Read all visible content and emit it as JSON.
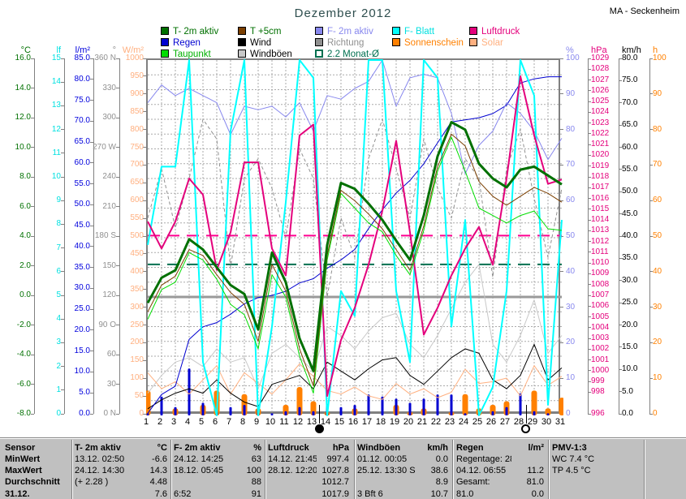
{
  "header": {
    "title": "Dezember 2012",
    "station": "MA - Seckenheim"
  },
  "legend": {
    "rows": [
      [
        {
          "label": "T- 2m aktiv",
          "swatch": "#007000",
          "text": "#007000"
        },
        {
          "label": "T +5cm",
          "swatch": "#7b3f00",
          "text": "#007000"
        },
        {
          "label": "F- 2m aktiv",
          "swatch": "#8888ee",
          "text": "#8888ee"
        },
        {
          "label": "F- Blatt",
          "swatch": "#00ffff",
          "text": "#00e0e0"
        },
        {
          "label": "Luftdruck",
          "swatch": "#e4007c",
          "text": "#e4007c"
        }
      ],
      [
        {
          "label": "Regen",
          "swatch": "#0000d0",
          "text": "#0000d0"
        },
        {
          "label": "Wind",
          "swatch": "#000000",
          "text": "#000000"
        },
        {
          "label": "Richtung",
          "swatch": "#909090",
          "text": "#909090"
        },
        {
          "label": "Sonnenschein",
          "swatch": "#ff8000",
          "text": "#ff8000"
        },
        {
          "label": "Solar",
          "swatch": "#ffb080",
          "text": "#ffb080"
        }
      ],
      [
        {
          "label": "Taupunkt",
          "swatch": "#00dd00",
          "text": "#00b000"
        },
        {
          "label": "Windböen",
          "swatch": "#c8c8c8",
          "text": "#000000"
        },
        {
          "label": "2.2 Monat-Ø",
          "swatch": "#ffffff",
          "text": "#007050",
          "outline": "#007050"
        }
      ]
    ]
  },
  "axes": {
    "left": [
      {
        "key": "degC",
        "unit": "°C",
        "color": "#007000",
        "max": 16,
        "min": -8,
        "step": 2,
        "dec": 1
      },
      {
        "key": "lf",
        "unit": "lf",
        "color": "#00e0e0",
        "max": 15,
        "min": 0,
        "step": 1,
        "dec": 0
      },
      {
        "key": "lm2",
        "unit": "l/m²",
        "color": "#0000dd",
        "max": 85,
        "min": 0,
        "step": 5,
        "dec": 1
      },
      {
        "key": "deg",
        "unit": "°",
        "color": "#909090",
        "max": 360,
        "min": 0,
        "step": 30,
        "dec": 0,
        "map": {
          "360": "360 N",
          "270": "270 W",
          "180": "180 S",
          "90": "90 O",
          "0": "0  N"
        }
      },
      {
        "key": "wm2",
        "unit": "W/m²",
        "color": "#ffb080",
        "max": 1000,
        "min": 0,
        "step": 50,
        "dec": 0
      }
    ],
    "right": [
      {
        "key": "pct",
        "unit": "%",
        "color": "#8888ee",
        "max": 100,
        "min": 0,
        "step": 10,
        "dec": 0
      },
      {
        "key": "hPa",
        "unit": "hPa",
        "color": "#e4007c",
        "max": 1029,
        "min": 996,
        "step": 1,
        "dec": 0,
        "skip": [
          997
        ]
      },
      {
        "key": "kmh",
        "unit": "km/h",
        "color": "#000000",
        "max": 80,
        "min": 0,
        "step": 5,
        "dec": 1
      },
      {
        "key": "h",
        "unit": "h",
        "color": "#ff8000",
        "max": 100,
        "min": 0,
        "step": 10,
        "dec": 0
      }
    ]
  },
  "x_axis": {
    "days": [
      1,
      2,
      3,
      4,
      5,
      6,
      7,
      8,
      9,
      10,
      11,
      12,
      13,
      14,
      15,
      16,
      17,
      18,
      19,
      20,
      21,
      22,
      23,
      24,
      25,
      26,
      27,
      28,
      29,
      30,
      31
    ]
  },
  "moon_markers": {
    "new_moon_day": 13.5,
    "full_moon_day": 28.5
  },
  "chart_data": {
    "type": "line",
    "title": "Dezember 2012",
    "x": [
      1,
      2,
      3,
      4,
      5,
      6,
      7,
      8,
      9,
      10,
      11,
      12,
      13,
      14,
      15,
      16,
      17,
      18,
      19,
      20,
      21,
      22,
      23,
      24,
      25,
      26,
      27,
      28,
      29,
      30,
      31
    ],
    "axes_ranges": {
      "degC": [
        -8,
        16
      ],
      "lf": [
        0,
        15
      ],
      "lm2": [
        0,
        85
      ],
      "deg": [
        0,
        360
      ],
      "wm2": [
        0,
        1000
      ],
      "pct": [
        0,
        100
      ],
      "hPa": [
        996,
        1029
      ],
      "kmh": [
        0,
        80
      ],
      "h": [
        0,
        100
      ]
    },
    "series": [
      {
        "name": "Richtung",
        "axis": "deg",
        "color": "#909090",
        "width": 1,
        "dash": "4 3",
        "values": [
          200,
          250,
          190,
          240,
          300,
          280,
          150,
          240,
          260,
          230,
          180,
          270,
          240,
          120,
          200,
          160,
          260,
          300,
          250,
          200,
          280,
          230,
          200,
          260,
          240,
          140,
          250,
          290,
          220,
          160,
          230
        ]
      },
      {
        "name": "Windböen",
        "axis": "kmh",
        "color": "#c8c8c8",
        "width": 1,
        "values": [
          5,
          9,
          12,
          13,
          11,
          15,
          12,
          13,
          6,
          14,
          16,
          13,
          10,
          20,
          18,
          15,
          19,
          22,
          23,
          16,
          13,
          18,
          24,
          30,
          34,
          16,
          12,
          18,
          26,
          14,
          18
        ]
      },
      {
        "name": "Solar",
        "axis": "wm2",
        "color": "#ffb080",
        "width": 1,
        "values": [
          120,
          75,
          95,
          60,
          100,
          140,
          60,
          120,
          90,
          60,
          100,
          145,
          110,
          70,
          60,
          80,
          55,
          45,
          90,
          60,
          75,
          50,
          65,
          130,
          90,
          95,
          105,
          55,
          140,
          85,
          110
        ]
      },
      {
        "name": "Wind",
        "axis": "kmh",
        "color": "#000000",
        "width": 1,
        "values": [
          1.5,
          3.5,
          5,
          6,
          5,
          8,
          5,
          3,
          2,
          7,
          8,
          9,
          6,
          12,
          10,
          8,
          10.5,
          12.5,
          13,
          9,
          7,
          10,
          13,
          15,
          14,
          8,
          6,
          9,
          16,
          8,
          10.7
        ]
      },
      {
        "name": "Regen-Summe",
        "axis": "lm2",
        "color": "#0000d0",
        "width": 1,
        "values": [
          0.5,
          5.0,
          7.0,
          18.2,
          21.2,
          22.2,
          24.2,
          26.7,
          28.2,
          28.7,
          29.7,
          31.7,
          32.7,
          35.2,
          37.2,
          39.7,
          44.7,
          49.2,
          53.2,
          56.2,
          60.2,
          65.2,
          70.2,
          70.7,
          71.2,
          72.2,
          74.2,
          79.5,
          80.5,
          81.0,
          81.0
        ]
      },
      {
        "name": "F- 2m aktiv",
        "axis": "pct",
        "color": "#8888ee",
        "width": 1,
        "values": [
          88,
          93,
          90,
          92,
          90,
          88,
          79,
          87,
          86,
          87,
          84,
          88,
          80,
          90,
          89,
          92,
          94,
          100,
          87,
          95,
          96,
          95,
          85,
          68,
          76,
          80,
          88,
          85,
          80,
          72,
          78
        ]
      },
      {
        "name": "F- Blatt",
        "axis": "pct",
        "color": "#00ffff",
        "width": 2,
        "values": [
          48,
          70,
          70,
          100,
          15,
          0,
          80,
          100,
          0,
          25,
          60,
          100,
          95,
          0,
          35,
          28,
          100,
          100,
          35,
          15,
          100,
          95,
          25,
          55,
          0,
          8,
          35,
          100,
          90,
          3,
          55
        ]
      },
      {
        "name": "Luftdruck",
        "axis": "hPa",
        "color": "#e4007c",
        "width": 2,
        "values": [
          1014,
          1011.5,
          1014,
          1018,
          1016.5,
          1009.5,
          1013,
          1019.5,
          1019.5,
          1011.5,
          1009,
          1022,
          1023,
          997.8,
          1003,
          1006,
          1010,
          1015,
          1021.5,
          1013,
          1003.5,
          1006,
          1009,
          1011.5,
          1013.5,
          1010,
          1018,
          1027.5,
          1022,
          1017.5,
          1017.9
        ]
      },
      {
        "name": "Taupunkt",
        "axis": "degC",
        "color": "#00dd00",
        "width": 1,
        "values": [
          -1.5,
          0.5,
          1.0,
          3.0,
          2.5,
          1.2,
          -0.5,
          -1.2,
          -3.5,
          1.5,
          0.0,
          -4.0,
          -6.5,
          2.5,
          7.0,
          6.0,
          5.0,
          4.4,
          2.8,
          1.5,
          4.5,
          8.5,
          10.8,
          8.5,
          6.0,
          5.5,
          5.0,
          5.5,
          5.8,
          4.6,
          4.5
        ]
      },
      {
        "name": "T +5cm",
        "axis": "degC",
        "color": "#7b3f00",
        "width": 1,
        "values": [
          -1.0,
          0.8,
          1.4,
          3.2,
          2.8,
          1.5,
          0.3,
          -0.5,
          -3.0,
          2.2,
          0.4,
          -3.5,
          -6.0,
          2.8,
          7.2,
          6.5,
          5.6,
          4.6,
          3.2,
          1.8,
          4.8,
          8.8,
          11.0,
          10.2,
          7.8,
          6.8,
          6.2,
          6.8,
          7.4,
          7.0,
          6.4
        ]
      },
      {
        "name": "T- 2m aktiv",
        "axis": "degC",
        "color": "#007000",
        "width": 3,
        "values": [
          -0.4,
          1.3,
          1.8,
          3.9,
          3.2,
          2.0,
          0.8,
          0.2,
          -2.2,
          3.0,
          1.0,
          -2.8,
          -5.0,
          3.5,
          7.7,
          7.3,
          6.3,
          5.2,
          3.8,
          2.5,
          5.5,
          9.5,
          11.8,
          11.3,
          9.0,
          8.0,
          7.4,
          8.6,
          8.8,
          8.2,
          7.6
        ]
      }
    ],
    "bars": [
      {
        "name": "Sonnenschein",
        "axis": "h",
        "color": "#ff8000",
        "width": 7,
        "values": [
          7,
          0,
          2,
          0,
          3,
          7,
          0,
          6,
          2,
          0,
          3,
          8,
          4,
          1,
          0,
          2,
          0,
          0,
          3,
          1,
          2,
          0,
          1,
          6,
          2,
          3,
          4,
          0,
          7,
          2,
          5
        ]
      },
      {
        "name": "Regen",
        "axis": "lm2",
        "color": "#0000d0",
        "width": 3,
        "values": [
          0.5,
          4.5,
          2.0,
          11.2,
          3.0,
          1.0,
          2.0,
          2.5,
          1.5,
          0.5,
          1.0,
          2.0,
          1.0,
          2.5,
          2.0,
          2.5,
          5.0,
          4.5,
          4.0,
          3.0,
          4.0,
          5.0,
          5.0,
          0.5,
          0.5,
          1.0,
          2.0,
          5.3,
          1.0,
          0.5,
          0.0
        ]
      }
    ],
    "reference_lines": [
      {
        "label": "0 °C Linie",
        "axis": "degC",
        "value": 0,
        "color": "#9a9a9a",
        "width": 3,
        "dash": ""
      },
      {
        "label": "2.2 Monat-Ø",
        "axis": "degC",
        "value": 2.2,
        "color": "#007050",
        "width": 2,
        "dash": "15 9"
      },
      {
        "label": "Luftdruck Durchschnitt 1012.7",
        "axis": "hPa",
        "value": 1012.7,
        "color": "#ff0090",
        "width": 2,
        "dash": "15 9"
      }
    ],
    "grid": {
      "v_days": true,
      "h_rows": 24
    }
  },
  "stats_table": {
    "corner": "Sensor",
    "columns": [
      {
        "name": "T- 2m aktiv",
        "unit": "°C"
      },
      {
        "name": "F- 2m aktiv",
        "unit": "%"
      },
      {
        "name": "Luftdruck",
        "unit": "hPa"
      },
      {
        "name": "Windböen",
        "unit": "km/h"
      },
      {
        "name": "Regen",
        "unit": "l/m²"
      },
      {
        "name": "PMV-1:3",
        "unit": ""
      }
    ],
    "rows": [
      {
        "label": "MinWert",
        "cells": [
          [
            "13.12.  02:50",
            "-6.6"
          ],
          [
            "24.12.  14:25",
            "63"
          ],
          [
            "14.12.  21:45",
            "997.4"
          ],
          [
            "01.12.  00:05",
            "0.0"
          ],
          [
            "Regentage: 28",
            ""
          ],
          [
            "WC 7.4 °C",
            ""
          ]
        ]
      },
      {
        "label": "MaxWert",
        "cells": [
          [
            "24.12.  14:30",
            "14.3"
          ],
          [
            "18.12.  05:45",
            "100"
          ],
          [
            "28.12.  12:20",
            "1027.8"
          ],
          [
            "25.12.  13:30 S",
            "38.6"
          ],
          [
            "04.12.  06:55",
            "11.2"
          ],
          [
            "TP 4.5 °C",
            ""
          ]
        ]
      },
      {
        "label": "Durchschnitt",
        "cells": [
          [
            "(+ 2.28 )",
            "4.48"
          ],
          [
            "",
            "88"
          ],
          [
            "",
            "1012.7"
          ],
          [
            "",
            "8.9"
          ],
          [
            "Gesamt:",
            "81.0"
          ],
          [
            "",
            ""
          ]
        ]
      },
      {
        "label": "31.12.",
        "cells": [
          [
            "",
            "7.6"
          ],
          [
            "6:52",
            "91"
          ],
          [
            "",
            "1017.9"
          ],
          [
            "3 Bft 6",
            "10.7"
          ],
          [
            "81.0",
            "0.0"
          ],
          [
            "",
            ""
          ]
        ]
      }
    ]
  }
}
